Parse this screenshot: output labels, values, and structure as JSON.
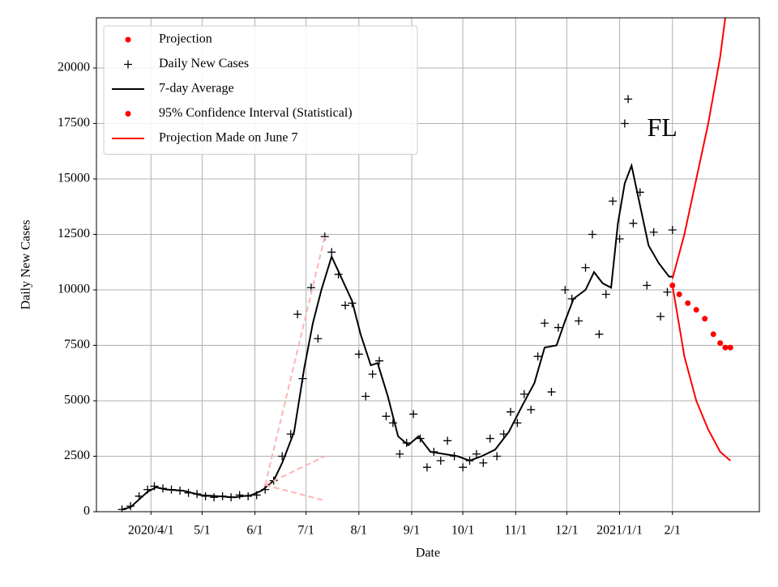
{
  "chart_data": {
    "type": "line",
    "xlabel": "Date",
    "ylabel": "Daily New Cases",
    "annotations": [
      {
        "text": "FL",
        "x": "2021-01-26",
        "y": 17200
      }
    ],
    "xlim": [
      "2020-02-29",
      "2021-03-24"
    ],
    "xticks": [
      {
        "value": "2020-04-01",
        "label": "2020/4/1"
      },
      {
        "value": "2020-05-01",
        "label": "5/1"
      },
      {
        "value": "2020-06-01",
        "label": "6/1"
      },
      {
        "value": "2020-07-01",
        "label": "7/1"
      },
      {
        "value": "2020-08-01",
        "label": "8/1"
      },
      {
        "value": "2020-09-01",
        "label": "9/1"
      },
      {
        "value": "2020-10-01",
        "label": "10/1"
      },
      {
        "value": "2020-11-01",
        "label": "11/1"
      },
      {
        "value": "2020-12-01",
        "label": "12/1"
      },
      {
        "value": "2021-01-01",
        "label": "2021/1/1"
      },
      {
        "value": "2021-02-01",
        "label": "2/1"
      }
    ],
    "ylim": [
      0,
      22263
    ],
    "yticks": [
      0,
      2500,
      5000,
      7500,
      10000,
      12500,
      15000,
      17500,
      20000
    ],
    "grid": true,
    "legend": "upper left",
    "series": [
      {
        "name": "Projection",
        "color": "#ff0000",
        "marker": "dot",
        "line": null,
        "x": [
          "2021-02-01",
          "2021-02-05",
          "2021-02-10",
          "2021-02-15",
          "2021-02-20",
          "2021-02-25",
          "2021-03-01",
          "2021-03-04",
          "2021-03-07"
        ],
        "values": [
          10200,
          9800,
          9400,
          9100,
          8700,
          8000,
          7600,
          7400,
          7400
        ]
      },
      {
        "name": "Daily New Cases",
        "color": "#000000",
        "marker": "plus",
        "line": null,
        "x": [
          "2020-03-15",
          "2020-03-20",
          "2020-03-25",
          "2020-03-30",
          "2020-04-03",
          "2020-04-08",
          "2020-04-13",
          "2020-04-18",
          "2020-04-23",
          "2020-04-28",
          "2020-05-03",
          "2020-05-08",
          "2020-05-13",
          "2020-05-18",
          "2020-05-23",
          "2020-05-28",
          "2020-06-02",
          "2020-06-07",
          "2020-06-12",
          "2020-06-17",
          "2020-06-22",
          "2020-06-26",
          "2020-06-29",
          "2020-07-04",
          "2020-07-08",
          "2020-07-12",
          "2020-07-16",
          "2020-07-20",
          "2020-07-24",
          "2020-07-28",
          "2020-08-01",
          "2020-08-05",
          "2020-08-09",
          "2020-08-13",
          "2020-08-17",
          "2020-08-21",
          "2020-08-25",
          "2020-08-29",
          "2020-09-02",
          "2020-09-06",
          "2020-09-10",
          "2020-09-14",
          "2020-09-18",
          "2020-09-22",
          "2020-09-26",
          "2020-10-01",
          "2020-10-05",
          "2020-10-09",
          "2020-10-13",
          "2020-10-17",
          "2020-10-21",
          "2020-10-25",
          "2020-10-29",
          "2020-11-02",
          "2020-11-06",
          "2020-11-10",
          "2020-11-14",
          "2020-11-18",
          "2020-11-22",
          "2020-11-26",
          "2020-11-30",
          "2020-12-04",
          "2020-12-08",
          "2020-12-12",
          "2020-12-16",
          "2020-12-20",
          "2020-12-24",
          "2020-12-28",
          "2021-01-01",
          "2021-01-04",
          "2021-01-06",
          "2021-01-09",
          "2021-01-13",
          "2021-01-17",
          "2021-01-21",
          "2021-01-25",
          "2021-01-29",
          "2021-02-01"
        ],
        "values": [
          100,
          250,
          700,
          1000,
          1150,
          1050,
          1000,
          950,
          850,
          800,
          700,
          650,
          700,
          650,
          750,
          700,
          750,
          1000,
          1400,
          2500,
          3500,
          8900,
          6000,
          10100,
          7800,
          12400,
          11700,
          10700,
          9300,
          9400,
          7100,
          5200,
          6200,
          6800,
          4300,
          4000,
          2600,
          3100,
          4400,
          3300,
          2000,
          2700,
          2300,
          3200,
          2500,
          2000,
          2300,
          2600,
          2200,
          3300,
          2500,
          3500,
          4500,
          4000,
          5300,
          4600,
          7000,
          8500,
          5400,
          8300,
          10000,
          9600,
          8600,
          11000,
          12500,
          8000,
          9800,
          14000,
          12300,
          17500,
          18600,
          13000,
          14400,
          10200,
          12600,
          8800,
          9900,
          12700
        ]
      },
      {
        "name": "7-day Average",
        "color": "#000000",
        "marker": null,
        "line": "solid",
        "x": [
          "2020-03-15",
          "2020-03-20",
          "2020-03-25",
          "2020-03-30",
          "2020-04-04",
          "2020-04-10",
          "2020-04-20",
          "2020-04-30",
          "2020-05-10",
          "2020-05-20",
          "2020-05-30",
          "2020-06-05",
          "2020-06-12",
          "2020-06-17",
          "2020-06-24",
          "2020-06-30",
          "2020-07-05",
          "2020-07-10",
          "2020-07-16",
          "2020-07-22",
          "2020-07-28",
          "2020-08-02",
          "2020-08-08",
          "2020-08-12",
          "2020-08-18",
          "2020-08-24",
          "2020-08-30",
          "2020-09-05",
          "2020-09-12",
          "2020-09-20",
          "2020-09-28",
          "2020-10-05",
          "2020-10-12",
          "2020-10-20",
          "2020-10-28",
          "2020-11-05",
          "2020-11-12",
          "2020-11-18",
          "2020-11-25",
          "2020-11-30",
          "2020-12-05",
          "2020-12-12",
          "2020-12-17",
          "2020-12-22",
          "2020-12-27",
          "2020-12-31",
          "2021-01-04",
          "2021-01-08",
          "2021-01-13",
          "2021-01-18",
          "2021-01-24",
          "2021-01-30",
          "2021-02-01"
        ],
        "values": [
          100,
          200,
          550,
          900,
          1100,
          1000,
          950,
          750,
          700,
          650,
          750,
          950,
          1400,
          2200,
          3600,
          6500,
          8500,
          10000,
          11500,
          10500,
          9500,
          8000,
          6600,
          6700,
          5200,
          3400,
          3000,
          3400,
          2700,
          2600,
          2500,
          2300,
          2500,
          2800,
          3600,
          4800,
          5800,
          7400,
          7500,
          8600,
          9600,
          10000,
          10800,
          10300,
          10100,
          13000,
          14800,
          15600,
          13800,
          12000,
          11200,
          10600,
          10600
        ]
      },
      {
        "name": "95% Confidence Interval (Statistical)",
        "color": "#ff0000",
        "marker": "dot",
        "line": null,
        "x": [],
        "values": []
      },
      {
        "name": "Projection Made on June 7",
        "color": "#ff0000",
        "marker": null,
        "line": "solid",
        "x": [
          "2021-02-01",
          "2021-02-08",
          "2021-02-15",
          "2021-02-22",
          "2021-03-01",
          "2021-03-04"
        ],
        "values": [
          10500,
          12500,
          15000,
          17500,
          20500,
          22263
        ]
      },
      {
        "color": "#ff0000",
        "marker": null,
        "line": "solid",
        "x": [
          "2021-02-01",
          "2021-02-08",
          "2021-02-15",
          "2021-02-22",
          "2021-03-01",
          "2021-03-07"
        ],
        "values": [
          10200,
          7000,
          5000,
          3700,
          2700,
          2300
        ]
      },
      {
        "color": "#ffb3b3",
        "marker": null,
        "line": "dashed",
        "x": [
          "2020-06-07",
          "2020-07-12"
        ],
        "values": [
          1200,
          12400
        ]
      },
      {
        "color": "#ffb3b3",
        "marker": null,
        "line": "dashed",
        "x": [
          "2020-06-07",
          "2020-07-12"
        ],
        "values": [
          1200,
          2500
        ]
      },
      {
        "color": "#ffb3b3",
        "marker": null,
        "line": "dashed",
        "x": [
          "2020-06-07",
          "2020-07-12"
        ],
        "values": [
          1200,
          500
        ]
      }
    ]
  }
}
